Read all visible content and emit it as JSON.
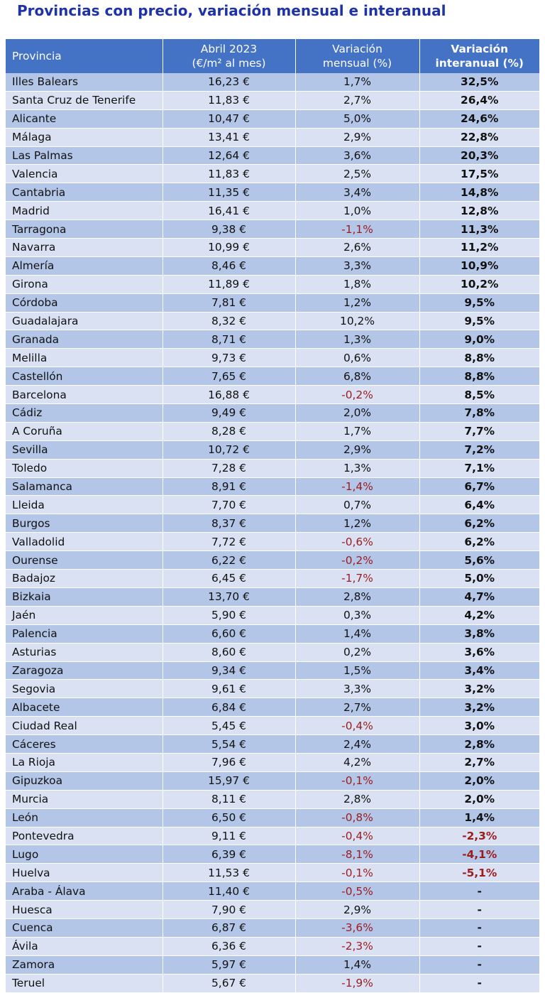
{
  "title": "Provincias con precio, variación mensual e interanual",
  "headers": {
    "provincia": "Provincia",
    "precio_line1": "Abril 2023",
    "precio_line2": "(€/m² al mes)",
    "mensual_line1": "Variación",
    "mensual_line2": "mensual (%)",
    "interanual_line1": "Variación",
    "interanual_line2": "interanual (%)"
  },
  "rows": [
    {
      "provincia": "Illes Balears",
      "precio": "16,23 €",
      "mensual": "1,7%",
      "interanual": "32,5%"
    },
    {
      "provincia": "Santa Cruz de Tenerife",
      "precio": "11,83 €",
      "mensual": "2,7%",
      "interanual": "26,4%"
    },
    {
      "provincia": "Alicante",
      "precio": "10,47 €",
      "mensual": "5,0%",
      "interanual": "24,6%"
    },
    {
      "provincia": "Málaga",
      "precio": "13,41 €",
      "mensual": "2,9%",
      "interanual": "22,8%"
    },
    {
      "provincia": "Las Palmas",
      "precio": "12,64 €",
      "mensual": "3,6%",
      "interanual": "20,3%"
    },
    {
      "provincia": "Valencia",
      "precio": "11,83 €",
      "mensual": "2,5%",
      "interanual": "17,5%"
    },
    {
      "provincia": "Cantabria",
      "precio": "11,35 €",
      "mensual": "3,4%",
      "interanual": "14,8%"
    },
    {
      "provincia": "Madrid",
      "precio": "16,41 €",
      "mensual": "1,0%",
      "interanual": "12,8%"
    },
    {
      "provincia": "Tarragona",
      "precio": "9,38 €",
      "mensual": "-1,1%",
      "interanual": "11,3%"
    },
    {
      "provincia": "Navarra",
      "precio": "10,99 €",
      "mensual": "2,6%",
      "interanual": "11,2%"
    },
    {
      "provincia": "Almería",
      "precio": "8,46 €",
      "mensual": "3,3%",
      "interanual": "10,9%"
    },
    {
      "provincia": "Girona",
      "precio": "11,89 €",
      "mensual": "1,8%",
      "interanual": "10,2%"
    },
    {
      "provincia": "Córdoba",
      "precio": "7,81 €",
      "mensual": "1,2%",
      "interanual": "9,5%"
    },
    {
      "provincia": "Guadalajara",
      "precio": "8,32 €",
      "mensual": "10,2%",
      "interanual": "9,5%"
    },
    {
      "provincia": "Granada",
      "precio": "8,71 €",
      "mensual": "1,3%",
      "interanual": "9,0%"
    },
    {
      "provincia": "Melilla",
      "precio": "9,73 €",
      "mensual": "0,6%",
      "interanual": "8,8%"
    },
    {
      "provincia": "Castellón",
      "precio": "7,65 €",
      "mensual": "6,8%",
      "interanual": "8,8%"
    },
    {
      "provincia": "Barcelona",
      "precio": "16,88 €",
      "mensual": "-0,2%",
      "interanual": "8,5%"
    },
    {
      "provincia": "Cádiz",
      "precio": "9,49 €",
      "mensual": "2,0%",
      "interanual": "7,8%"
    },
    {
      "provincia": "A Coruña",
      "precio": "8,28 €",
      "mensual": "1,7%",
      "interanual": "7,7%"
    },
    {
      "provincia": "Sevilla",
      "precio": "10,72 €",
      "mensual": "2,9%",
      "interanual": "7,2%"
    },
    {
      "provincia": "Toledo",
      "precio": "7,28 €",
      "mensual": "1,3%",
      "interanual": "7,1%"
    },
    {
      "provincia": "Salamanca",
      "precio": "8,91 €",
      "mensual": "-1,4%",
      "interanual": "6,7%"
    },
    {
      "provincia": "Lleida",
      "precio": "7,70 €",
      "mensual": "0,7%",
      "interanual": "6,4%"
    },
    {
      "provincia": "Burgos",
      "precio": "8,37 €",
      "mensual": "1,2%",
      "interanual": "6,2%"
    },
    {
      "provincia": "Valladolid",
      "precio": "7,72 €",
      "mensual": "-0,6%",
      "interanual": "6,2%"
    },
    {
      "provincia": "Ourense",
      "precio": "6,22 €",
      "mensual": "-0,2%",
      "interanual": "5,6%"
    },
    {
      "provincia": "Badajoz",
      "precio": "6,45 €",
      "mensual": "-1,7%",
      "interanual": "5,0%"
    },
    {
      "provincia": "Bizkaia",
      "precio": "13,70 €",
      "mensual": "2,8%",
      "interanual": "4,7%"
    },
    {
      "provincia": "Jaén",
      "precio": "5,90 €",
      "mensual": "0,3%",
      "interanual": "4,2%"
    },
    {
      "provincia": "Palencia",
      "precio": "6,60 €",
      "mensual": "1,4%",
      "interanual": "3,8%"
    },
    {
      "provincia": "Asturias",
      "precio": "8,60 €",
      "mensual": "0,2%",
      "interanual": "3,6%"
    },
    {
      "provincia": "Zaragoza",
      "precio": "9,34 €",
      "mensual": "1,5%",
      "interanual": "3,4%"
    },
    {
      "provincia": "Segovia",
      "precio": "9,61 €",
      "mensual": "3,3%",
      "interanual": "3,2%"
    },
    {
      "provincia": "Albacete",
      "precio": "6,84 €",
      "mensual": "2,7%",
      "interanual": "3,2%"
    },
    {
      "provincia": "Ciudad Real",
      "precio": "5,45 €",
      "mensual": "-0,4%",
      "interanual": "3,0%"
    },
    {
      "provincia": "Cáceres",
      "precio": "5,54 €",
      "mensual": "2,4%",
      "interanual": "2,8%"
    },
    {
      "provincia": "La Rioja",
      "precio": "7,96 €",
      "mensual": "4,2%",
      "interanual": "2,7%"
    },
    {
      "provincia": "Gipuzkoa",
      "precio": "15,97 €",
      "mensual": "-0,1%",
      "interanual": "2,0%"
    },
    {
      "provincia": "Murcia",
      "precio": "8,11 €",
      "mensual": "2,8%",
      "interanual": "2,0%"
    },
    {
      "provincia": "León",
      "precio": "6,50 €",
      "mensual": "-0,8%",
      "interanual": "1,4%"
    },
    {
      "provincia": "Pontevedra",
      "precio": "9,11 €",
      "mensual": "-0,4%",
      "interanual": "-2,3%"
    },
    {
      "provincia": "Lugo",
      "precio": "6,39 €",
      "mensual": "-8,1%",
      "interanual": "-4,1%"
    },
    {
      "provincia": "Huelva",
      "precio": "11,53 €",
      "mensual": "-0,1%",
      "interanual": "-5,1%"
    },
    {
      "provincia": "Araba - Álava",
      "precio": "11,40 €",
      "mensual": "-0,5%",
      "interanual": "-"
    },
    {
      "provincia": "Huesca",
      "precio": "7,90 €",
      "mensual": "2,9%",
      "interanual": "-"
    },
    {
      "provincia": "Cuenca",
      "precio": "6,87 €",
      "mensual": "-3,6%",
      "interanual": "-"
    },
    {
      "provincia": "Ávila",
      "precio": "6,36 €",
      "mensual": "-2,3%",
      "interanual": "-"
    },
    {
      "provincia": "Zamora",
      "precio": "5,97 €",
      "mensual": "1,4%",
      "interanual": "-"
    },
    {
      "provincia": "Teruel",
      "precio": "5,67 €",
      "mensual": "-1,9%",
      "interanual": "-"
    }
  ],
  "colors": {
    "title": "#1f33a8",
    "header_bg": "#4472c4",
    "row_odd": "#b4c6e7",
    "row_even": "#d9e1f2",
    "negative": "#9c1c1c"
  }
}
